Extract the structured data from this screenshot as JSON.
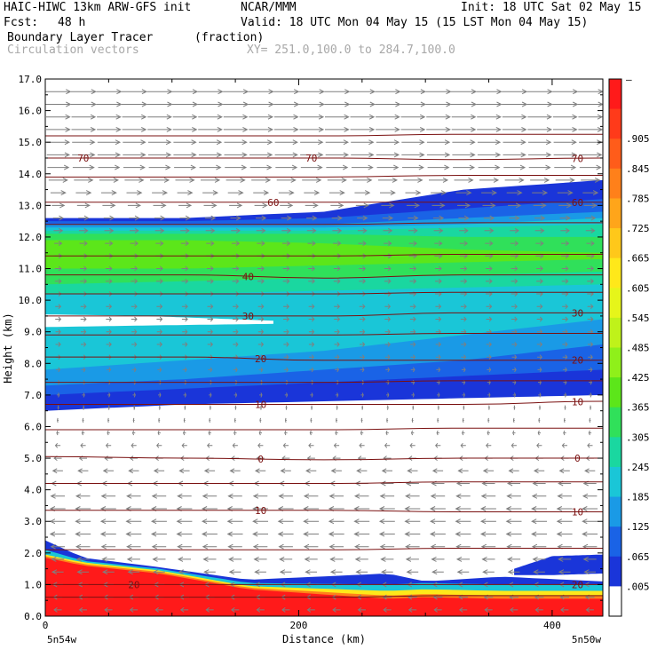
{
  "header": {
    "model": "HAIC-HIWC 13km ARW-GFS init",
    "org": "NCAR/MMM",
    "init": "Init: 18 UTC Sat 02 May 15",
    "fcst_label": "Fcst:",
    "fcst_value": "48 h",
    "valid": "Valid: 18 UTC Mon 04 May 15 (15 LST Mon 04 May 15)",
    "field_name": "Boundary Layer Tracer",
    "field_units": "(fraction)",
    "vector_name": "Circulation vectors",
    "xy_range": "XY= 251.0,100.0 to 284.7,100.0"
  },
  "chart_data": {
    "type": "heatmap",
    "title": "Boundary Layer Tracer (fraction)",
    "xlabel": "Distance (km)",
    "ylabel": "Height (km)",
    "xlim": [
      0,
      440
    ],
    "ylim": [
      0,
      17
    ],
    "x_ticks": [
      0,
      200,
      400
    ],
    "y_ticks": [
      "0.0",
      "1.0",
      "2.0",
      "3.0",
      "4.0",
      "5.0",
      "6.0",
      "7.0",
      "8.0",
      "9.0",
      "10.0",
      "11.0",
      "12.0",
      "13.0",
      "14.0",
      "15.0",
      "16.0",
      "17.0"
    ],
    "x_end_labels": {
      "left": "5n54w",
      "right": "5n50w"
    },
    "colorbar": {
      "labels": [
        "–",
        ".905",
        ".845",
        ".785",
        ".725",
        ".665",
        ".605",
        ".545",
        ".485",
        ".425",
        ".365",
        ".305",
        ".245",
        ".185",
        ".125",
        ".065",
        ".005"
      ],
      "colors": [
        "#ff1a1a",
        "#ff3a1a",
        "#ff5c1a",
        "#ff801a",
        "#ffa51a",
        "#ffc81a",
        "#ffe81a",
        "#e6f51a",
        "#bff21a",
        "#8ff01a",
        "#5ce61a",
        "#30e05a",
        "#1ad7a0",
        "#1ac6d7",
        "#1a9ae6",
        "#1a63e6",
        "#1a35d9",
        "#ffffff"
      ]
    },
    "contours": [
      {
        "label": "70",
        "y": [
          14.5,
          14.5,
          14.5,
          14.45,
          14.5
        ],
        "labels_at_x": [
          30,
          210,
          420
        ]
      },
      {
        "label": "60",
        "y": [
          13.1,
          13.1,
          13.1,
          13.1,
          13.1
        ],
        "labels_at_x": [
          180,
          420
        ]
      },
      {
        "label": "40",
        "y": [
          10.8,
          10.8,
          10.7,
          10.8,
          10.8
        ],
        "labels_at_x": [
          160
        ]
      },
      {
        "label": "30",
        "y": [
          9.5,
          9.5,
          9.5,
          9.6,
          9.6
        ],
        "labels_at_x": [
          160,
          420
        ]
      },
      {
        "label": "20",
        "y": [
          8.2,
          8.2,
          8.1,
          8.1,
          8.1
        ],
        "labels_at_x": [
          170,
          420
        ]
      },
      {
        "label": "10",
        "y": [
          6.7,
          6.7,
          6.7,
          6.7,
          6.8
        ],
        "labels_at_x": [
          170,
          420
        ]
      },
      {
        "label": "0",
        "y": [
          5.05,
          5.0,
          4.95,
          5.0,
          5.0
        ],
        "labels_at_x": [
          170,
          420
        ]
      },
      {
        "label": "10",
        "y": [
          3.35,
          3.35,
          3.35,
          3.3,
          3.3
        ],
        "labels_at_x": [
          170,
          420
        ]
      },
      {
        "label": "20",
        "y": [
          1.0,
          1.0,
          1.0,
          1.0,
          1.0
        ],
        "labels_at_x": [
          70,
          420
        ]
      }
    ],
    "contour_x": [
      0,
      110,
      220,
      330,
      440
    ],
    "extra_lines_y": [
      15.2,
      13.9,
      12.4,
      11.4,
      10.2,
      8.9,
      7.4,
      5.9,
      4.2,
      2.1,
      0.6
    ],
    "vectors": {
      "rows": [
        {
          "y": 16.6,
          "u": 1.0
        },
        {
          "y": 16.2,
          "u": 1.0
        },
        {
          "y": 15.8,
          "u": 0.95
        },
        {
          "y": 15.4,
          "u": 0.95
        },
        {
          "y": 15.0,
          "u": 0.9
        },
        {
          "y": 14.6,
          "u": 0.9
        },
        {
          "y": 14.2,
          "u": 0.85
        },
        {
          "y": 13.8,
          "u": 0.75
        },
        {
          "y": 13.4,
          "u": 0.6
        },
        {
          "y": 13.0,
          "u": 0.5
        },
        {
          "y": 12.6,
          "u": 0.4
        },
        {
          "y": 12.2,
          "u": 0.35
        },
        {
          "y": 11.8,
          "u": 0.3
        },
        {
          "y": 11.4,
          "u": 0.3
        },
        {
          "y": 11.0,
          "u": 0.25
        },
        {
          "y": 10.6,
          "u": 0.25
        },
        {
          "y": 10.2,
          "u": 0.25
        },
        {
          "y": 9.8,
          "u": 0.22
        },
        {
          "y": 9.4,
          "u": 0.22
        },
        {
          "y": 9.0,
          "u": 0.2
        },
        {
          "y": 8.6,
          "u": 0.2
        },
        {
          "y": 8.2,
          "u": 0.18
        },
        {
          "y": 7.8,
          "u": 0.15
        },
        {
          "y": 7.4,
          "u": 0.12
        },
        {
          "y": 7.0,
          "u": 0.1
        },
        {
          "y": 6.6,
          "u": 0.05
        },
        {
          "y": 6.2,
          "u": -0.05
        },
        {
          "y": 5.8,
          "u": -0.1
        },
        {
          "y": 5.4,
          "u": -0.2
        },
        {
          "y": 5.0,
          "u": -0.3
        },
        {
          "y": 4.6,
          "u": -0.4
        },
        {
          "y": 4.2,
          "u": -0.5
        },
        {
          "y": 3.8,
          "u": -0.55
        },
        {
          "y": 3.4,
          "u": -0.6
        },
        {
          "y": 3.0,
          "u": -0.6
        },
        {
          "y": 2.6,
          "u": -0.6
        },
        {
          "y": 2.2,
          "u": -0.55
        },
        {
          "y": 1.8,
          "u": -0.5
        },
        {
          "y": 1.4,
          "u": -0.45
        },
        {
          "y": 1.0,
          "u": -0.4
        },
        {
          "y": 0.6,
          "u": -0.35
        },
        {
          "y": 0.2,
          "u": -0.3
        }
      ],
      "x_step": 20
    },
    "tracer_layers": [
      {
        "color": "#1a35d9",
        "top": [
          12.6,
          12.6,
          12.8,
          13.5,
          13.8
        ],
        "bottom": [
          6.5,
          6.7,
          6.8,
          6.9,
          7.0
        ]
      },
      {
        "color": "#1a63e6",
        "top": [
          12.5,
          12.5,
          12.6,
          12.9,
          13.2
        ],
        "bottom": [
          7.0,
          7.2,
          7.4,
          7.6,
          7.8
        ]
      },
      {
        "color": "#1a9ae6",
        "top": [
          12.4,
          12.4,
          12.4,
          12.6,
          12.8
        ],
        "bottom": [
          7.3,
          7.5,
          7.8,
          8.1,
          8.6
        ]
      },
      {
        "color": "#1ac6d7",
        "top": [
          12.3,
          12.3,
          12.3,
          12.4,
          12.6
        ],
        "bottom": [
          7.8,
          8.1,
          8.4,
          8.9,
          9.4
        ]
      },
      {
        "color": "#1ad7a0",
        "top": [
          12.2,
          12.2,
          12.2,
          12.3,
          12.4
        ],
        "bottom": [
          10.2,
          10.2,
          10.3,
          10.4,
          10.5
        ]
      },
      {
        "color": "#30e05a",
        "top": [
          12.1,
          12.1,
          12.1,
          12.0,
          12.0
        ],
        "bottom": [
          10.5,
          10.6,
          10.7,
          10.8,
          10.9
        ]
      },
      {
        "color": "#5ce61a",
        "top": [
          11.9,
          11.9,
          11.8,
          11.6,
          11.5
        ],
        "bottom": [
          11.0,
          11.0,
          11.1,
          11.2,
          11.3
        ]
      }
    ],
    "tracer_gap": {
      "top": [
        9.55,
        9.5,
        9.35
      ],
      "bottom": [
        9.15,
        9.2,
        9.25
      ],
      "x": [
        0,
        80,
        180
      ]
    },
    "surface_layers": [
      {
        "color": "#1a35d9",
        "top": [
          2.4,
          1.85,
          1.55,
          1.15,
          1.35,
          1.1,
          1.25,
          1.1
        ],
        "x": [
          0,
          30,
          90,
          160,
          270,
          300,
          360,
          440
        ]
      },
      {
        "color": "#1ac6d7",
        "top": [
          2.1,
          1.75,
          1.5,
          1.05,
          1.0,
          1.05,
          1.0,
          1.0
        ],
        "x": [
          0,
          30,
          90,
          160,
          270,
          300,
          360,
          440
        ]
      },
      {
        "color": "#ffe81a",
        "top": [
          1.95,
          1.7,
          1.45,
          0.95,
          0.8,
          0.85,
          0.8,
          0.8
        ],
        "x": [
          0,
          30,
          90,
          160,
          270,
          300,
          360,
          440
        ]
      },
      {
        "color": "#ff801a",
        "top": [
          1.9,
          1.65,
          1.4,
          0.9,
          0.65,
          0.7,
          0.65,
          0.65
        ],
        "x": [
          0,
          30,
          90,
          160,
          270,
          300,
          360,
          440
        ]
      },
      {
        "color": "#ff1a1a",
        "top": [
          1.85,
          1.6,
          1.35,
          0.85,
          0.55,
          0.6,
          0.55,
          0.55
        ],
        "x": [
          0,
          30,
          90,
          160,
          270,
          300,
          360,
          440
        ]
      }
    ],
    "side_patch": {
      "color": "#1a35d9",
      "top": [
        1.5,
        1.9,
        1.95
      ],
      "bottom": [
        1.3,
        1.3,
        1.35
      ],
      "x": [
        370,
        400,
        440
      ]
    }
  }
}
